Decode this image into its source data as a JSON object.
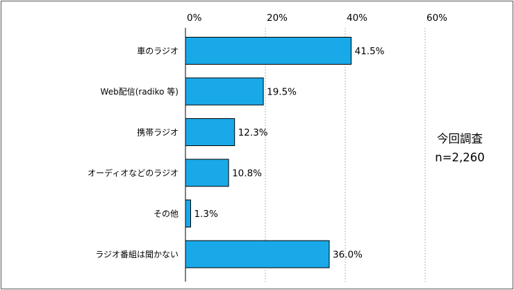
{
  "chart_data": {
    "type": "bar",
    "orientation": "horizontal",
    "categories": [
      "車のラジオ",
      "Web配信(radiko 等)",
      "携帯ラジオ",
      "オーディオなどのラジオ",
      "その他",
      "ラジオ番組は聞かない"
    ],
    "values": [
      41.5,
      19.5,
      12.3,
      10.8,
      1.3,
      36.0
    ],
    "value_labels": [
      "41.5%",
      "19.5%",
      "12.3%",
      "10.8%",
      "1.3%",
      "36.0%"
    ],
    "xlim": [
      0,
      60
    ],
    "ticks": [
      0,
      20,
      40,
      60
    ],
    "tick_labels": [
      "0%",
      "20%",
      "40%",
      "60%"
    ],
    "grid": "vertical dotted",
    "bar_color": "#1aa9e8",
    "bar_border_color": "#000000",
    "annotation": {
      "line1": "今回調査",
      "line2": "n=2,260"
    }
  }
}
